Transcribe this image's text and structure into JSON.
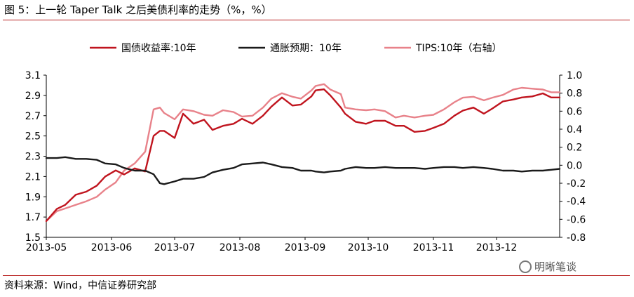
{
  "figure": {
    "title": "图 5：上一轮 Taper Talk 之后美债利率的走势（%，%）",
    "source": "资料来源：Wind，中信证券研究部",
    "watermark": "明晰笔谈"
  },
  "chart_data": {
    "type": "line",
    "x": [
      "2013-05-01",
      "2013-05-06",
      "2013-05-10",
      "2013-05-15",
      "2013-05-20",
      "2013-05-25",
      "2013-05-29",
      "2013-06-03",
      "2013-06-07",
      "2013-06-12",
      "2013-06-17",
      "2013-06-21",
      "2013-06-24",
      "2013-06-26",
      "2013-07-01",
      "2013-07-05",
      "2013-07-10",
      "2013-07-15",
      "2013-07-19",
      "2013-07-24",
      "2013-07-29",
      "2013-08-02",
      "2013-08-07",
      "2013-08-12",
      "2013-08-16",
      "2013-08-21",
      "2013-08-26",
      "2013-08-30",
      "2013-09-04",
      "2013-09-06",
      "2013-09-10",
      "2013-09-13",
      "2013-09-18",
      "2013-09-20",
      "2013-09-25",
      "2013-09-30",
      "2013-10-04",
      "2013-10-09",
      "2013-10-14",
      "2013-10-18",
      "2013-10-23",
      "2013-10-28",
      "2013-11-01",
      "2013-11-06",
      "2013-11-11",
      "2013-11-15",
      "2013-11-20",
      "2013-11-25",
      "2013-11-29",
      "2013-12-04",
      "2013-12-09",
      "2013-12-13",
      "2013-12-18",
      "2013-12-23",
      "2013-12-27",
      "2013-12-31"
    ],
    "series": [
      {
        "name": "国债收益率:10年",
        "axis": "left",
        "color": "#c0141e",
        "values": [
          1.66,
          1.78,
          1.82,
          1.92,
          1.95,
          2.01,
          2.1,
          2.16,
          2.12,
          2.18,
          2.15,
          2.5,
          2.55,
          2.55,
          2.48,
          2.72,
          2.62,
          2.66,
          2.56,
          2.6,
          2.62,
          2.67,
          2.62,
          2.7,
          2.79,
          2.88,
          2.8,
          2.81,
          2.89,
          2.95,
          2.96,
          2.9,
          2.78,
          2.72,
          2.64,
          2.62,
          2.65,
          2.65,
          2.6,
          2.6,
          2.54,
          2.55,
          2.58,
          2.62,
          2.7,
          2.75,
          2.78,
          2.72,
          2.77,
          2.84,
          2.86,
          2.88,
          2.89,
          2.92,
          2.88,
          2.88
        ]
      },
      {
        "name": "通胀预期：10年",
        "axis": "right",
        "color": "#1a1a1a",
        "values": [
          0.08,
          0.08,
          0.09,
          0.07,
          0.07,
          0.06,
          0.02,
          0.01,
          -0.03,
          -0.06,
          -0.06,
          -0.1,
          -0.2,
          -0.21,
          -0.18,
          -0.15,
          -0.15,
          -0.13,
          -0.08,
          -0.05,
          -0.03,
          0.01,
          0.02,
          0.03,
          0.01,
          -0.02,
          -0.03,
          -0.06,
          -0.06,
          -0.07,
          -0.08,
          -0.07,
          -0.06,
          -0.04,
          -0.02,
          -0.03,
          -0.03,
          -0.02,
          -0.03,
          -0.03,
          -0.03,
          -0.04,
          -0.03,
          -0.02,
          -0.02,
          -0.03,
          -0.02,
          -0.03,
          -0.04,
          -0.06,
          -0.06,
          -0.07,
          -0.06,
          -0.06,
          -0.05,
          -0.04
        ]
      },
      {
        "name": "TIPS:10年（右轴）",
        "axis": "right",
        "color": "#e8828a",
        "values": [
          -0.62,
          -0.51,
          -0.48,
          -0.44,
          -0.4,
          -0.35,
          -0.27,
          -0.19,
          -0.06,
          0.02,
          0.15,
          0.62,
          0.64,
          0.58,
          0.51,
          0.62,
          0.6,
          0.56,
          0.55,
          0.61,
          0.59,
          0.54,
          0.55,
          0.64,
          0.74,
          0.8,
          0.76,
          0.74,
          0.83,
          0.88,
          0.9,
          0.84,
          0.79,
          0.64,
          0.62,
          0.61,
          0.62,
          0.6,
          0.53,
          0.55,
          0.53,
          0.55,
          0.56,
          0.62,
          0.7,
          0.75,
          0.76,
          0.72,
          0.75,
          0.78,
          0.84,
          0.86,
          0.85,
          0.84,
          0.81,
          0.81
        ]
      }
    ],
    "xticks": [
      "2013-05",
      "2013-06",
      "2013-07",
      "2013-08",
      "2013-09",
      "2013-10",
      "2013-11",
      "2013-12"
    ],
    "ylim_left": [
      1.5,
      3.1
    ],
    "yticks_left": [
      1.5,
      1.7,
      1.9,
      2.1,
      2.3,
      2.5,
      2.7,
      2.9,
      3.1
    ],
    "ylim_right": [
      -0.8,
      1.0
    ],
    "yticks_right": [
      -0.8,
      -0.6,
      -0.4,
      -0.2,
      0.0,
      0.2,
      0.4,
      0.6,
      0.8,
      1.0
    ],
    "grid": false,
    "legend": "top"
  }
}
